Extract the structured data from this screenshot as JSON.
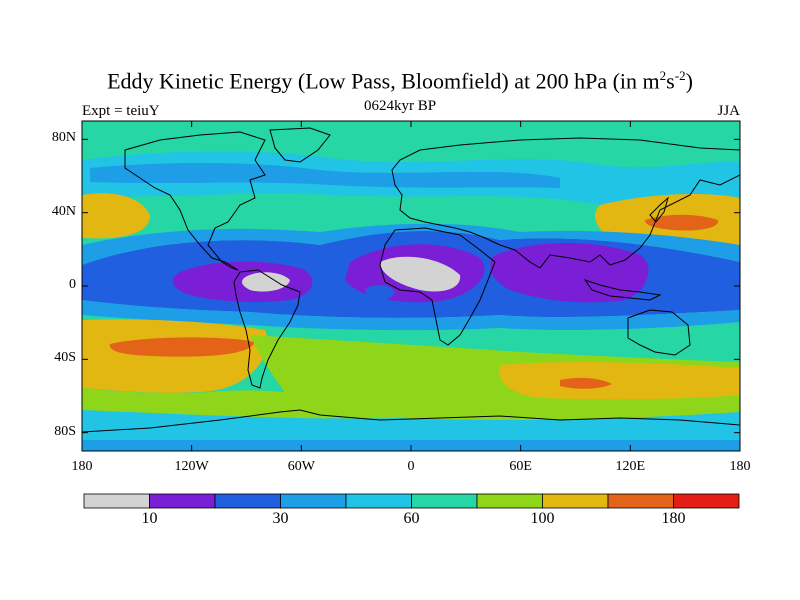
{
  "title": {
    "main": "Eddy Kinetic Energy (Low Pass, Bloomfield) at 200 hPa (in m",
    "sup1": "2",
    "mid": "s",
    "sup2": "-2",
    "end": ")"
  },
  "subtitle_left": "Expt = teiuY",
  "subtitle_center": "0624kyr BP",
  "subtitle_right": "JJA",
  "axes": {
    "y_ticks": [
      "80N",
      "40N",
      "0",
      "40S",
      "80S"
    ],
    "y_values": [
      80,
      40,
      0,
      -40,
      -80
    ],
    "x_ticks": [
      "180",
      "120W",
      "60W",
      "0",
      "60E",
      "120E",
      "180"
    ],
    "x_values": [
      -180,
      -120,
      -60,
      0,
      60,
      120,
      180
    ],
    "lon_range": [
      -180,
      180
    ],
    "lat_range": [
      -90,
      90
    ]
  },
  "colorbar": {
    "colors": [
      "#d3d3d3",
      "#7a1fd6",
      "#1f5fe0",
      "#1f9ee8",
      "#22c4e6",
      "#26d6a4",
      "#8fd61a",
      "#e3b712",
      "#e36418",
      "#e41e14"
    ],
    "labels": [
      "10",
      "30",
      "60",
      "100",
      "180"
    ]
  },
  "colors": {
    "background_field": "#26d6a4",
    "coastline": "#000000"
  }
}
